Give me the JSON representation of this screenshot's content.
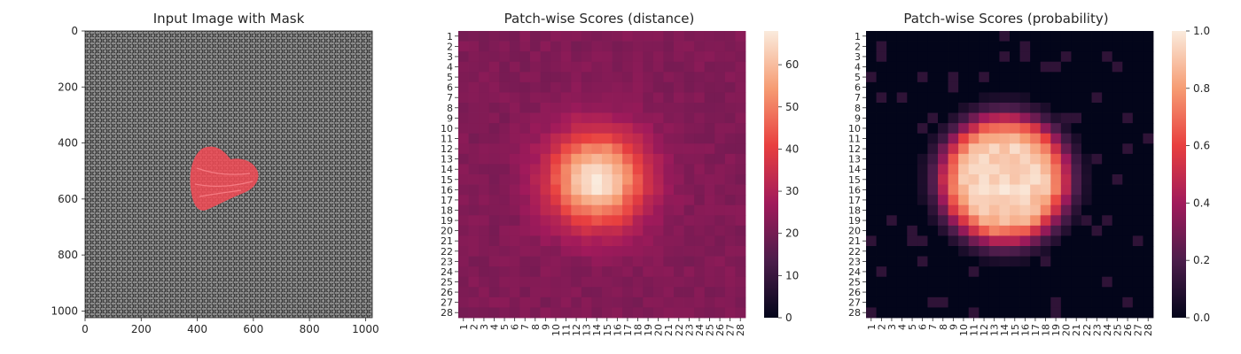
{
  "chart_data": [
    {
      "type": "image",
      "title": "Input Image with Mask",
      "xticks": [
        "0",
        "200",
        "400",
        "600",
        "800",
        "1000"
      ],
      "yticks": [
        "0",
        "200",
        "400",
        "600",
        "800",
        "1000"
      ],
      "xlim": [
        0,
        1024
      ],
      "ylim": [
        1024,
        0
      ],
      "mask": {
        "shape": "heart",
        "color": "#f24a55",
        "x_range": [
          370,
          620
        ],
        "y_range": [
          400,
          640
        ]
      }
    },
    {
      "type": "heatmap",
      "title": "Patch-wise Scores (distance)",
      "rows": 28,
      "cols": 28,
      "row_labels": [
        "1",
        "2",
        "3",
        "4",
        "5",
        "6",
        "7",
        "8",
        "9",
        "10",
        "11",
        "12",
        "13",
        "14",
        "15",
        "16",
        "17",
        "18",
        "19",
        "20",
        "21",
        "22",
        "23",
        "24",
        "25",
        "26",
        "27",
        "28"
      ],
      "col_labels": [
        "1",
        "2",
        "3",
        "4",
        "5",
        "6",
        "7",
        "8",
        "9",
        "10",
        "11",
        "12",
        "13",
        "14",
        "15",
        "16",
        "17",
        "18",
        "19",
        "20",
        "21",
        "22",
        "23",
        "24",
        "25",
        "26",
        "27",
        "28"
      ],
      "colorbar": {
        "min": 0,
        "max": 68,
        "ticks": [
          "0",
          "10",
          "20",
          "30",
          "40",
          "50",
          "60"
        ]
      },
      "peak": {
        "row": 15,
        "col": 14,
        "value": 68
      },
      "background_value": 22
    },
    {
      "type": "heatmap",
      "title": "Patch-wise Scores (probability)",
      "rows": 28,
      "cols": 28,
      "row_labels": [
        "1",
        "2",
        "3",
        "4",
        "5",
        "6",
        "7",
        "8",
        "9",
        "10",
        "11",
        "12",
        "13",
        "14",
        "15",
        "16",
        "17",
        "18",
        "19",
        "20",
        "21",
        "22",
        "23",
        "24",
        "25",
        "26",
        "27",
        "28"
      ],
      "col_labels": [
        "1",
        "2",
        "3",
        "4",
        "5",
        "6",
        "7",
        "8",
        "9",
        "10",
        "11",
        "12",
        "13",
        "14",
        "15",
        "16",
        "17",
        "18",
        "19",
        "20",
        "21",
        "22",
        "23",
        "24",
        "25",
        "26",
        "27",
        "28"
      ],
      "colorbar": {
        "min": 0.0,
        "max": 1.0,
        "ticks": [
          "0.0",
          "0.2",
          "0.4",
          "0.6",
          "0.8",
          "1.0"
        ]
      },
      "peak": {
        "row": 15,
        "col": 14,
        "value": 1.0
      },
      "background_value": 0.0
    }
  ]
}
